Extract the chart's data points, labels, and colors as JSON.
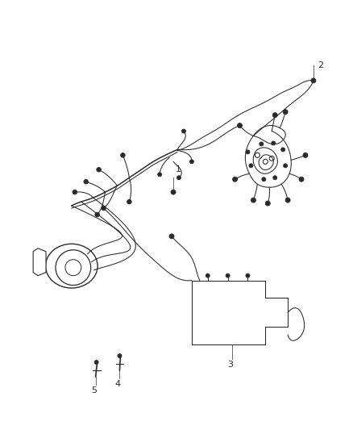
{
  "background_color": "#ffffff",
  "line_color": "#2a2a2a",
  "label_color": "#000000",
  "figsize": [
    4.38,
    5.33
  ],
  "dpi": 100,
  "label_fontsize": 8,
  "lw_main": 1.1,
  "lw_thin": 0.75,
  "lw_hair": 0.5,
  "connector_size": 0.006,
  "connector_lw": 0.8
}
